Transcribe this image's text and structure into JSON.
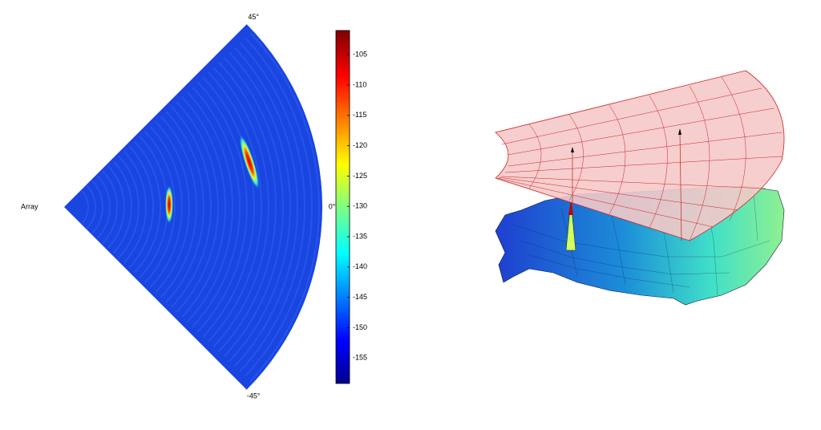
{
  "chart_data": {
    "type": "polar-heatmap",
    "radial_label": "Array",
    "thetaticks": [
      {
        "value": 45,
        "label": "45°"
      },
      {
        "value": 0,
        "label": "0°"
      },
      {
        "value": -45,
        "label": "-45°"
      }
    ],
    "thetalim": [
      -45,
      45
    ],
    "colormap": "jet",
    "clim": [
      -159.2,
      -101
    ],
    "cticks": [
      -105,
      -110,
      -115,
      -120,
      -125,
      -130,
      -135,
      -140,
      -145,
      -150,
      -155
    ]
  }
}
